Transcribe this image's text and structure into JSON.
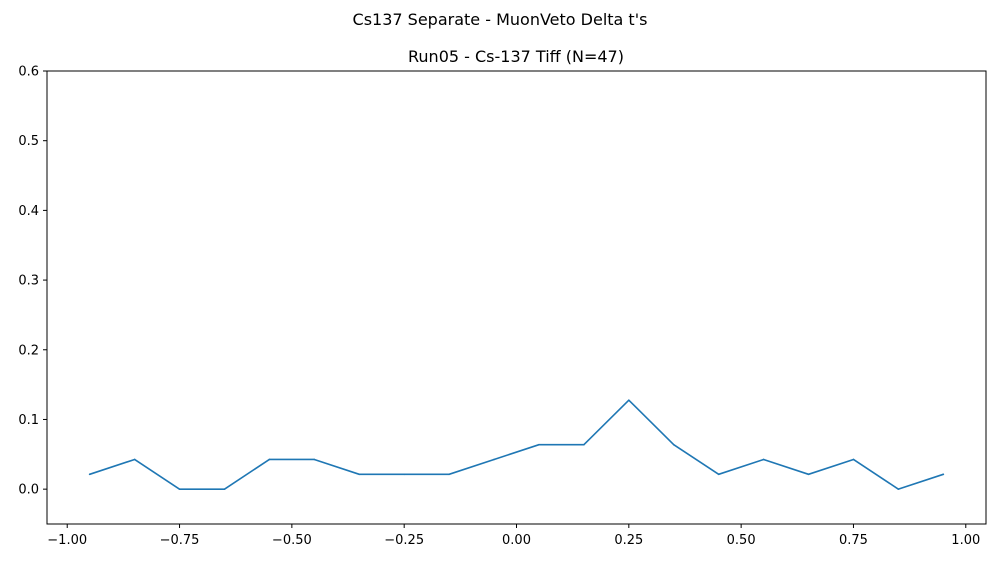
{
  "figure": {
    "suptitle": "Cs137 Separate - MuonVeto Delta t's"
  },
  "chart_data": {
    "type": "line",
    "title": "Run05 - Cs-137 Tiff (N=47)",
    "xlabel": "",
    "ylabel": "",
    "xlim": [
      -1.045,
      1.045
    ],
    "ylim": [
      -0.05,
      0.6
    ],
    "x_ticks": [
      -1.0,
      -0.75,
      -0.5,
      -0.25,
      0.0,
      0.25,
      0.5,
      0.75,
      1.0
    ],
    "x_tick_labels": [
      "−1.00",
      "−0.75",
      "−0.50",
      "−0.25",
      "0.00",
      "0.25",
      "0.50",
      "0.75",
      "1.00"
    ],
    "y_ticks": [
      0.0,
      0.1,
      0.2,
      0.3,
      0.4,
      0.5,
      0.6
    ],
    "y_tick_labels": [
      "0.0",
      "0.1",
      "0.2",
      "0.3",
      "0.4",
      "0.5",
      "0.6"
    ],
    "grid": false,
    "line_color": "#1f77b4",
    "series": [
      {
        "x": [
          -0.95,
          -0.85,
          -0.75,
          -0.65,
          -0.55,
          -0.45,
          -0.35,
          -0.25,
          -0.15,
          -0.05,
          0.05,
          0.15,
          0.25,
          0.35,
          0.45,
          0.55,
          0.65,
          0.75,
          0.85,
          0.95
        ],
        "values": [
          0.0213,
          0.0426,
          0.0,
          0.0,
          0.0426,
          0.0426,
          0.0213,
          0.0213,
          0.0213,
          0.0426,
          0.0638,
          0.0638,
          0.1277,
          0.0638,
          0.0213,
          0.0426,
          0.0213,
          0.0426,
          0.0,
          0.0213
        ]
      }
    ]
  }
}
